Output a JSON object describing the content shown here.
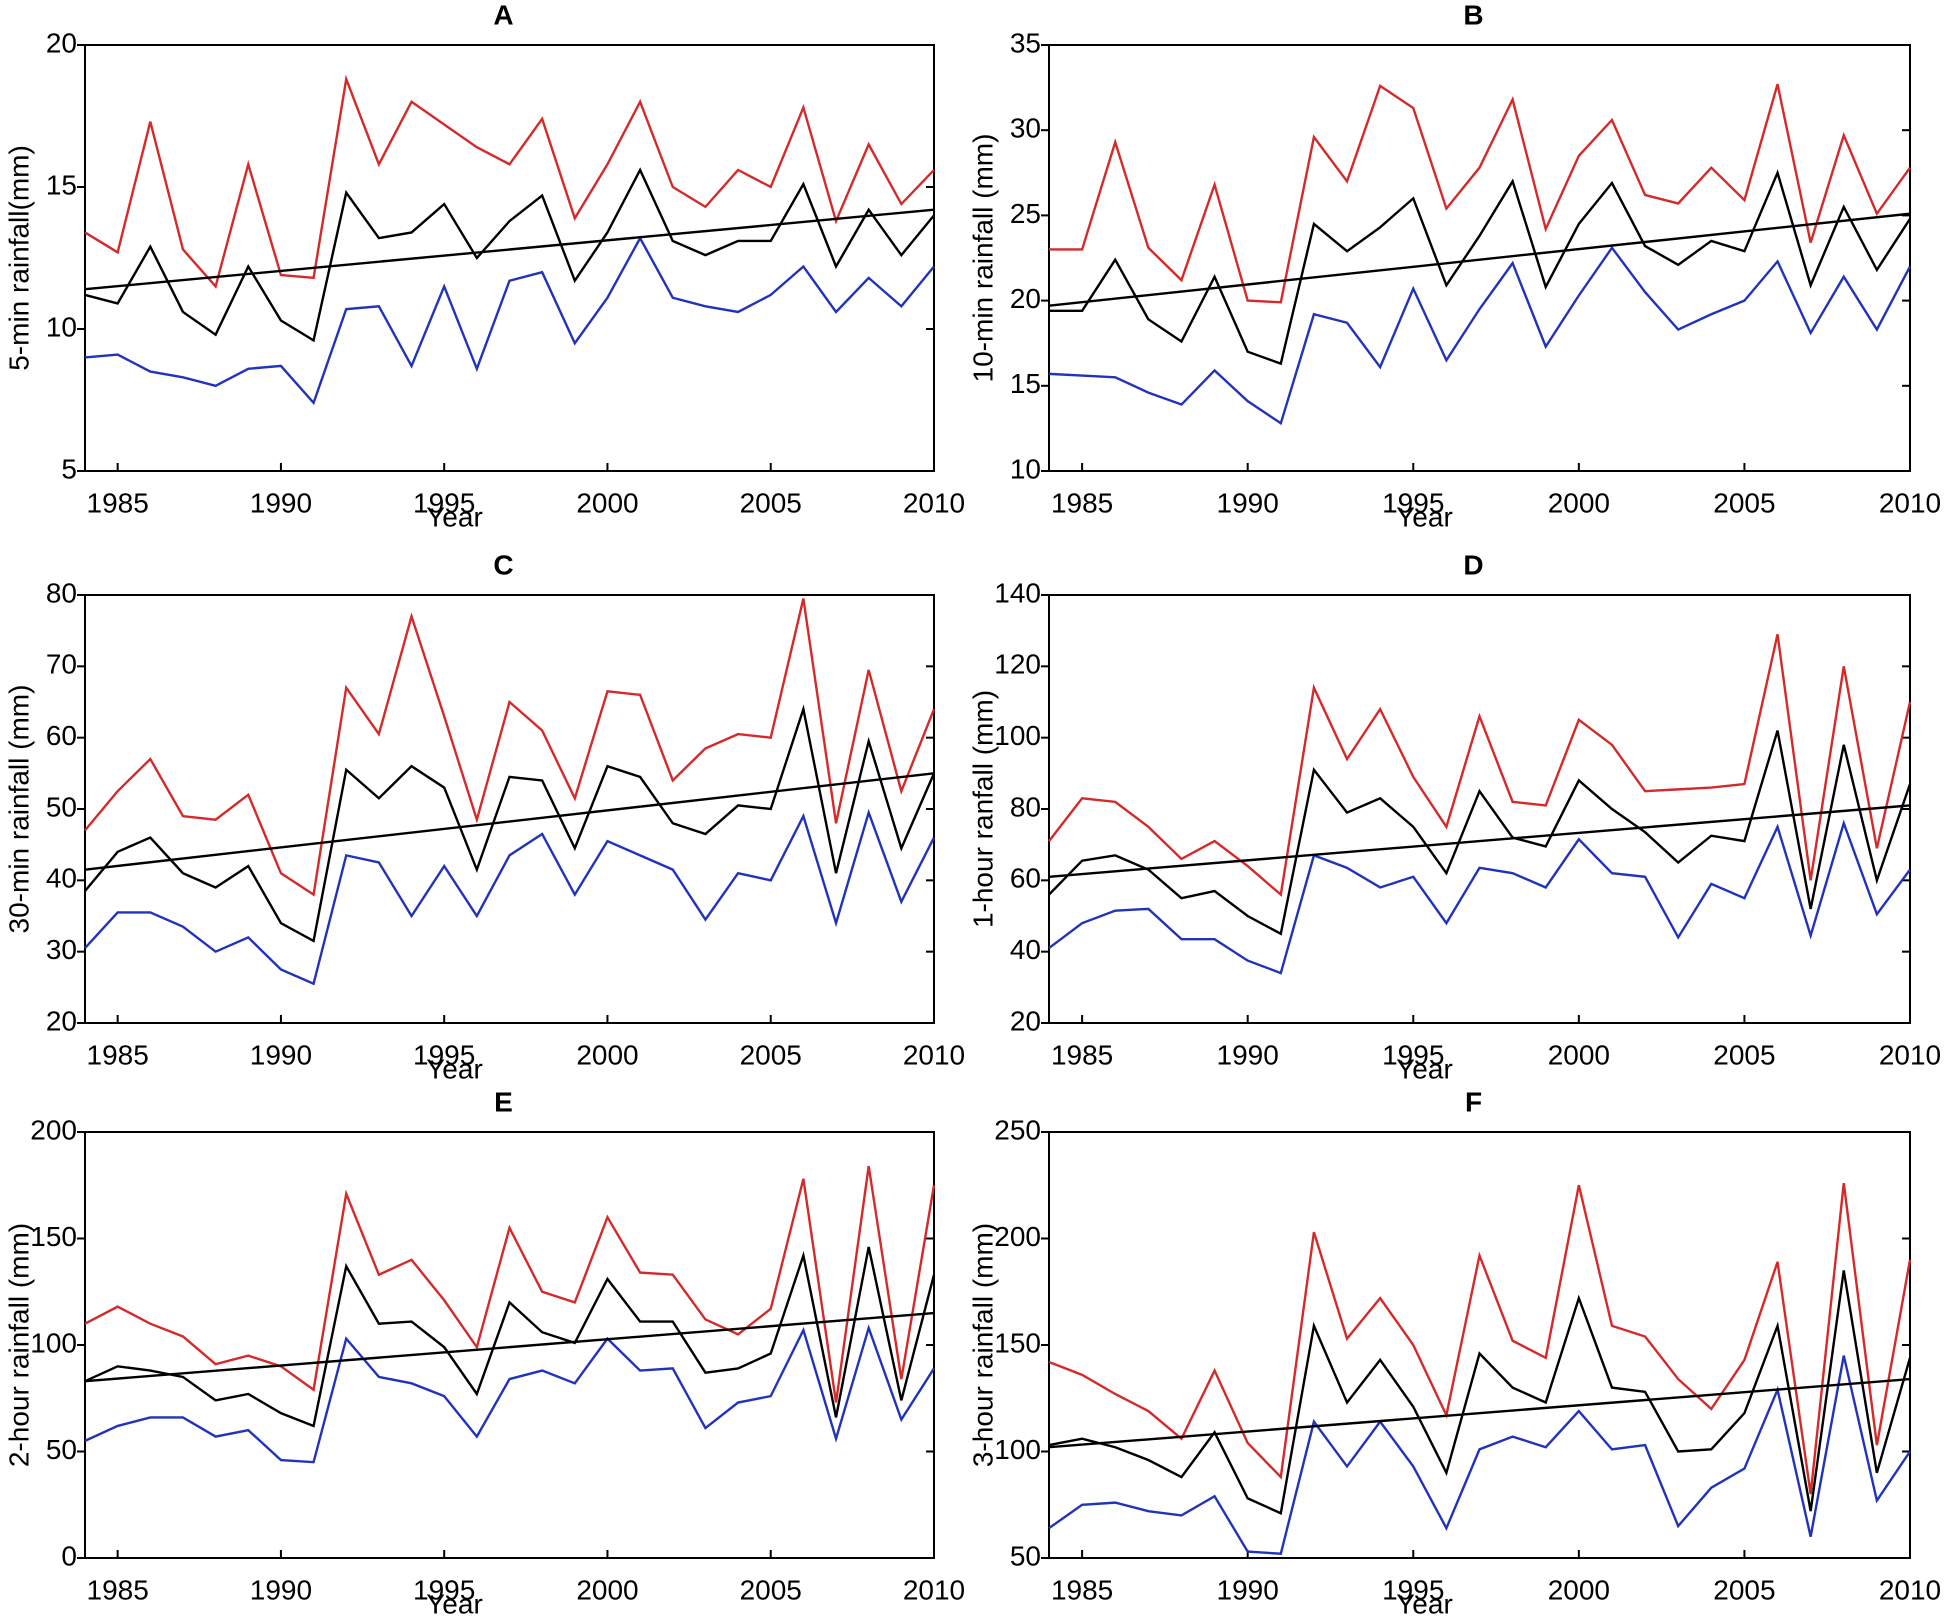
{
  "chart_data": [
    {
      "type": "line",
      "title": "A",
      "ylabel": "5-min rainfall(mm)",
      "xlabel": "Year",
      "x": [
        1984,
        1985,
        1986,
        1987,
        1988,
        1989,
        1990,
        1991,
        1992,
        1993,
        1994,
        1995,
        1996,
        1997,
        1998,
        1999,
        2000,
        2001,
        2002,
        2003,
        2004,
        2005,
        2006,
        2007,
        2008,
        2009,
        2010
      ],
      "xlim": [
        1984,
        2010
      ],
      "xticks": [
        1985,
        1990,
        1995,
        2000,
        2005,
        2010
      ],
      "ylim": [
        5,
        20
      ],
      "yticks": [
        5,
        10,
        15,
        20
      ],
      "series": [
        {
          "color": "#d42a2a",
          "values": [
            13.4,
            12.7,
            17.3,
            12.8,
            11.5,
            15.8,
            11.9,
            11.8,
            18.8,
            15.8,
            18.0,
            17.2,
            16.4,
            15.8,
            17.4,
            13.9,
            15.8,
            18.0,
            15.0,
            14.3,
            15.6,
            15.0,
            17.8,
            13.8,
            16.5,
            14.4,
            15.6
          ]
        },
        {
          "color": "#000000",
          "values": [
            11.2,
            10.9,
            12.9,
            10.6,
            9.8,
            12.2,
            10.3,
            9.6,
            14.8,
            13.2,
            13.4,
            14.4,
            12.5,
            13.8,
            14.7,
            11.7,
            13.4,
            15.6,
            13.1,
            12.6,
            13.1,
            13.1,
            15.1,
            12.2,
            14.2,
            12.6,
            14.0
          ]
        },
        {
          "color": "#2233bb",
          "values": [
            9.0,
            9.1,
            8.5,
            8.3,
            8.0,
            8.6,
            8.7,
            7.4,
            10.7,
            10.8,
            8.7,
            11.5,
            8.6,
            11.7,
            12.0,
            9.5,
            11.1,
            13.2,
            11.1,
            10.8,
            10.6,
            11.2,
            12.2,
            10.6,
            11.8,
            10.8,
            12.2
          ]
        }
      ],
      "trend": {
        "color": "#000000",
        "x": [
          1984,
          2010
        ],
        "values": [
          11.4,
          14.2
        ]
      }
    },
    {
      "type": "line",
      "title": "B",
      "ylabel": "10-min rainfall (mm)",
      "xlabel": "Year",
      "x": [
        1984,
        1985,
        1986,
        1987,
        1988,
        1989,
        1990,
        1991,
        1992,
        1993,
        1994,
        1995,
        1996,
        1997,
        1998,
        1999,
        2000,
        2001,
        2002,
        2003,
        2004,
        2005,
        2006,
        2007,
        2008,
        2009,
        2010
      ],
      "xlim": [
        1984,
        2010
      ],
      "xticks": [
        1985,
        1990,
        1995,
        2000,
        2005,
        2010
      ],
      "ylim": [
        10,
        35
      ],
      "yticks": [
        10,
        15,
        20,
        25,
        30,
        35
      ],
      "series": [
        {
          "color": "#d42a2a",
          "values": [
            23.0,
            23.0,
            29.3,
            23.1,
            21.2,
            26.8,
            20.0,
            19.9,
            29.6,
            27.0,
            32.6,
            31.3,
            25.4,
            27.8,
            31.8,
            24.2,
            28.5,
            30.6,
            26.2,
            25.7,
            27.8,
            25.9,
            32.7,
            23.4,
            29.7,
            25.1,
            27.8
          ]
        },
        {
          "color": "#000000",
          "values": [
            19.4,
            19.4,
            22.4,
            18.9,
            17.6,
            21.4,
            17.0,
            16.3,
            24.5,
            22.9,
            24.3,
            26.0,
            20.9,
            23.8,
            27.0,
            20.8,
            24.5,
            26.9,
            23.2,
            22.1,
            23.5,
            22.9,
            27.5,
            20.9,
            25.5,
            21.8,
            24.8
          ]
        },
        {
          "color": "#2233bb",
          "values": [
            15.7,
            15.6,
            15.5,
            14.6,
            13.9,
            15.9,
            14.1,
            12.8,
            19.2,
            18.7,
            16.1,
            20.7,
            16.5,
            19.5,
            22.2,
            17.3,
            20.3,
            23.1,
            20.5,
            18.3,
            19.2,
            20.0,
            22.3,
            18.1,
            21.4,
            18.3,
            22.0
          ]
        }
      ],
      "trend": {
        "color": "#000000",
        "x": [
          1984,
          2010
        ],
        "values": [
          19.7,
          25.1
        ]
      }
    },
    {
      "type": "line",
      "title": "C",
      "ylabel": "30-min rainfall (mm)",
      "xlabel": "Year",
      "x": [
        1984,
        1985,
        1986,
        1987,
        1988,
        1989,
        1990,
        1991,
        1992,
        1993,
        1994,
        1995,
        1996,
        1997,
        1998,
        1999,
        2000,
        2001,
        2002,
        2003,
        2004,
        2005,
        2006,
        2007,
        2008,
        2009,
        2010
      ],
      "xlim": [
        1984,
        2010
      ],
      "xticks": [
        1985,
        1990,
        1995,
        2000,
        2005,
        2010
      ],
      "ylim": [
        20,
        80
      ],
      "yticks": [
        20,
        30,
        40,
        50,
        60,
        70,
        80
      ],
      "series": [
        {
          "color": "#d42a2a",
          "values": [
            47,
            52.5,
            57,
            49,
            48.5,
            52,
            41,
            38,
            67,
            60.5,
            77,
            63,
            48.5,
            65,
            61,
            51.5,
            66.5,
            66,
            54,
            58.5,
            60.5,
            60,
            79.5,
            48,
            69.5,
            52.5,
            64
          ]
        },
        {
          "color": "#000000",
          "values": [
            38.5,
            44,
            46,
            41,
            39,
            42,
            34,
            31.5,
            55.5,
            51.5,
            56,
            53,
            41.5,
            54.5,
            54,
            44.5,
            56,
            54.5,
            48,
            46.5,
            50.5,
            50,
            64,
            41,
            59.5,
            44.5,
            55
          ]
        },
        {
          "color": "#2233bb",
          "values": [
            30.5,
            35.5,
            35.5,
            33.5,
            30,
            32,
            27.5,
            25.5,
            43.5,
            42.5,
            35,
            42,
            35,
            43.5,
            46.5,
            38,
            45.5,
            43.5,
            41.5,
            34.5,
            41,
            40,
            49,
            34,
            49.5,
            37,
            46
          ]
        }
      ],
      "trend": {
        "color": "#000000",
        "x": [
          1984,
          2010
        ],
        "values": [
          41.5,
          55
        ]
      }
    },
    {
      "type": "line",
      "title": "D",
      "ylabel": "1-hour ranfall (mm)",
      "xlabel": "Year",
      "x": [
        1984,
        1985,
        1986,
        1987,
        1988,
        1989,
        1990,
        1991,
        1992,
        1993,
        1994,
        1995,
        1996,
        1997,
        1998,
        1999,
        2000,
        2001,
        2002,
        2003,
        2004,
        2005,
        2006,
        2007,
        2008,
        2009,
        2010
      ],
      "xlim": [
        1984,
        2010
      ],
      "xticks": [
        1985,
        1990,
        1995,
        2000,
        2005,
        2010
      ],
      "ylim": [
        20,
        140
      ],
      "yticks": [
        20,
        40,
        60,
        80,
        100,
        120,
        140
      ],
      "series": [
        {
          "color": "#d42a2a",
          "values": [
            71,
            83,
            82,
            75,
            66,
            71,
            64,
            56,
            114,
            94,
            108,
            89,
            75,
            106,
            82,
            81,
            105,
            98,
            85,
            85.5,
            86,
            87,
            129,
            60,
            120,
            69,
            110
          ]
        },
        {
          "color": "#000000",
          "values": [
            56,
            65.5,
            67,
            63,
            55,
            57,
            50,
            45,
            91,
            79,
            83,
            75,
            62,
            85,
            72,
            69.5,
            88,
            80,
            73.5,
            65,
            72.5,
            71,
            102,
            52,
            98,
            60,
            87
          ]
        },
        {
          "color": "#2233bb",
          "values": [
            41,
            48,
            51.5,
            52,
            43.5,
            43.5,
            37.5,
            34,
            67,
            63.5,
            58,
            61,
            48,
            63.5,
            62,
            58,
            71.5,
            62,
            61,
            44,
            59,
            55,
            75,
            44.5,
            76,
            50.5,
            63
          ]
        }
      ],
      "trend": {
        "color": "#000000",
        "x": [
          1984,
          2010
        ],
        "values": [
          61,
          81
        ]
      }
    },
    {
      "type": "line",
      "title": "E",
      "ylabel": "2-hour rainfall (mm)",
      "xlabel": "Year",
      "x": [
        1984,
        1985,
        1986,
        1987,
        1988,
        1989,
        1990,
        1991,
        1992,
        1993,
        1994,
        1995,
        1996,
        1997,
        1998,
        1999,
        2000,
        2001,
        2002,
        2003,
        2004,
        2005,
        2006,
        2007,
        2008,
        2009,
        2010
      ],
      "xlim": [
        1984,
        2010
      ],
      "xticks": [
        1985,
        1990,
        1995,
        2000,
        2005,
        2010
      ],
      "ylim": [
        0,
        200
      ],
      "yticks": [
        0,
        50,
        100,
        150,
        200
      ],
      "series": [
        {
          "color": "#d42a2a",
          "values": [
            110,
            118,
            110,
            104,
            91,
            95,
            90,
            79,
            171,
            133,
            140,
            121,
            99,
            155,
            125,
            120,
            160,
            134,
            133,
            112,
            105,
            117,
            178,
            73,
            184,
            84,
            175
          ]
        },
        {
          "color": "#000000",
          "values": [
            83,
            90,
            88,
            85,
            74,
            77,
            68,
            62,
            137,
            110,
            111,
            99,
            77,
            120,
            106,
            101,
            131,
            111,
            111,
            87,
            89,
            96,
            142,
            66,
            146,
            74,
            133
          ]
        },
        {
          "color": "#2233bb",
          "values": [
            55,
            62,
            66,
            66,
            57,
            60,
            46,
            45,
            103,
            85,
            82,
            76,
            57,
            84,
            88,
            82,
            103,
            88,
            89,
            61,
            73,
            76,
            107,
            56,
            108,
            65,
            89
          ]
        }
      ],
      "trend": {
        "color": "#000000",
        "x": [
          1984,
          2010
        ],
        "values": [
          83,
          115
        ]
      }
    },
    {
      "type": "line",
      "title": "F",
      "ylabel": "3-hour rainfall (mm)",
      "xlabel": "Year",
      "x": [
        1984,
        1985,
        1986,
        1987,
        1988,
        1989,
        1990,
        1991,
        1992,
        1993,
        1994,
        1995,
        1996,
        1997,
        1998,
        1999,
        2000,
        2001,
        2002,
        2003,
        2004,
        2005,
        2006,
        2007,
        2008,
        2009,
        2010
      ],
      "xlim": [
        1984,
        2010
      ],
      "xticks": [
        1985,
        1990,
        1995,
        2000,
        2005,
        2010
      ],
      "ylim": [
        50,
        250
      ],
      "yticks": [
        50,
        100,
        150,
        200,
        250
      ],
      "series": [
        {
          "color": "#d42a2a",
          "values": [
            142,
            136,
            127,
            119,
            106,
            138,
            104,
            88,
            203,
            153,
            172,
            150,
            117,
            192,
            152,
            144,
            225,
            159,
            154,
            134,
            120,
            143,
            189,
            80,
            226,
            103,
            190
          ]
        },
        {
          "color": "#000000",
          "values": [
            103,
            106,
            102,
            96,
            88,
            109,
            78,
            71,
            159,
            123,
            143,
            121,
            90,
            146,
            130,
            123,
            172,
            130,
            128,
            100,
            101,
            118,
            159,
            72,
            185,
            90,
            144
          ]
        },
        {
          "color": "#2233bb",
          "values": [
            64,
            75,
            76,
            72,
            70,
            79,
            53,
            52,
            114,
            93,
            114,
            93,
            64,
            101,
            107,
            102,
            119,
            101,
            103,
            65,
            83,
            92,
            129,
            60,
            145,
            77,
            100
          ]
        }
      ],
      "trend": {
        "color": "#000000",
        "x": [
          1984,
          2010
        ],
        "values": [
          102,
          134
        ]
      }
    }
  ]
}
